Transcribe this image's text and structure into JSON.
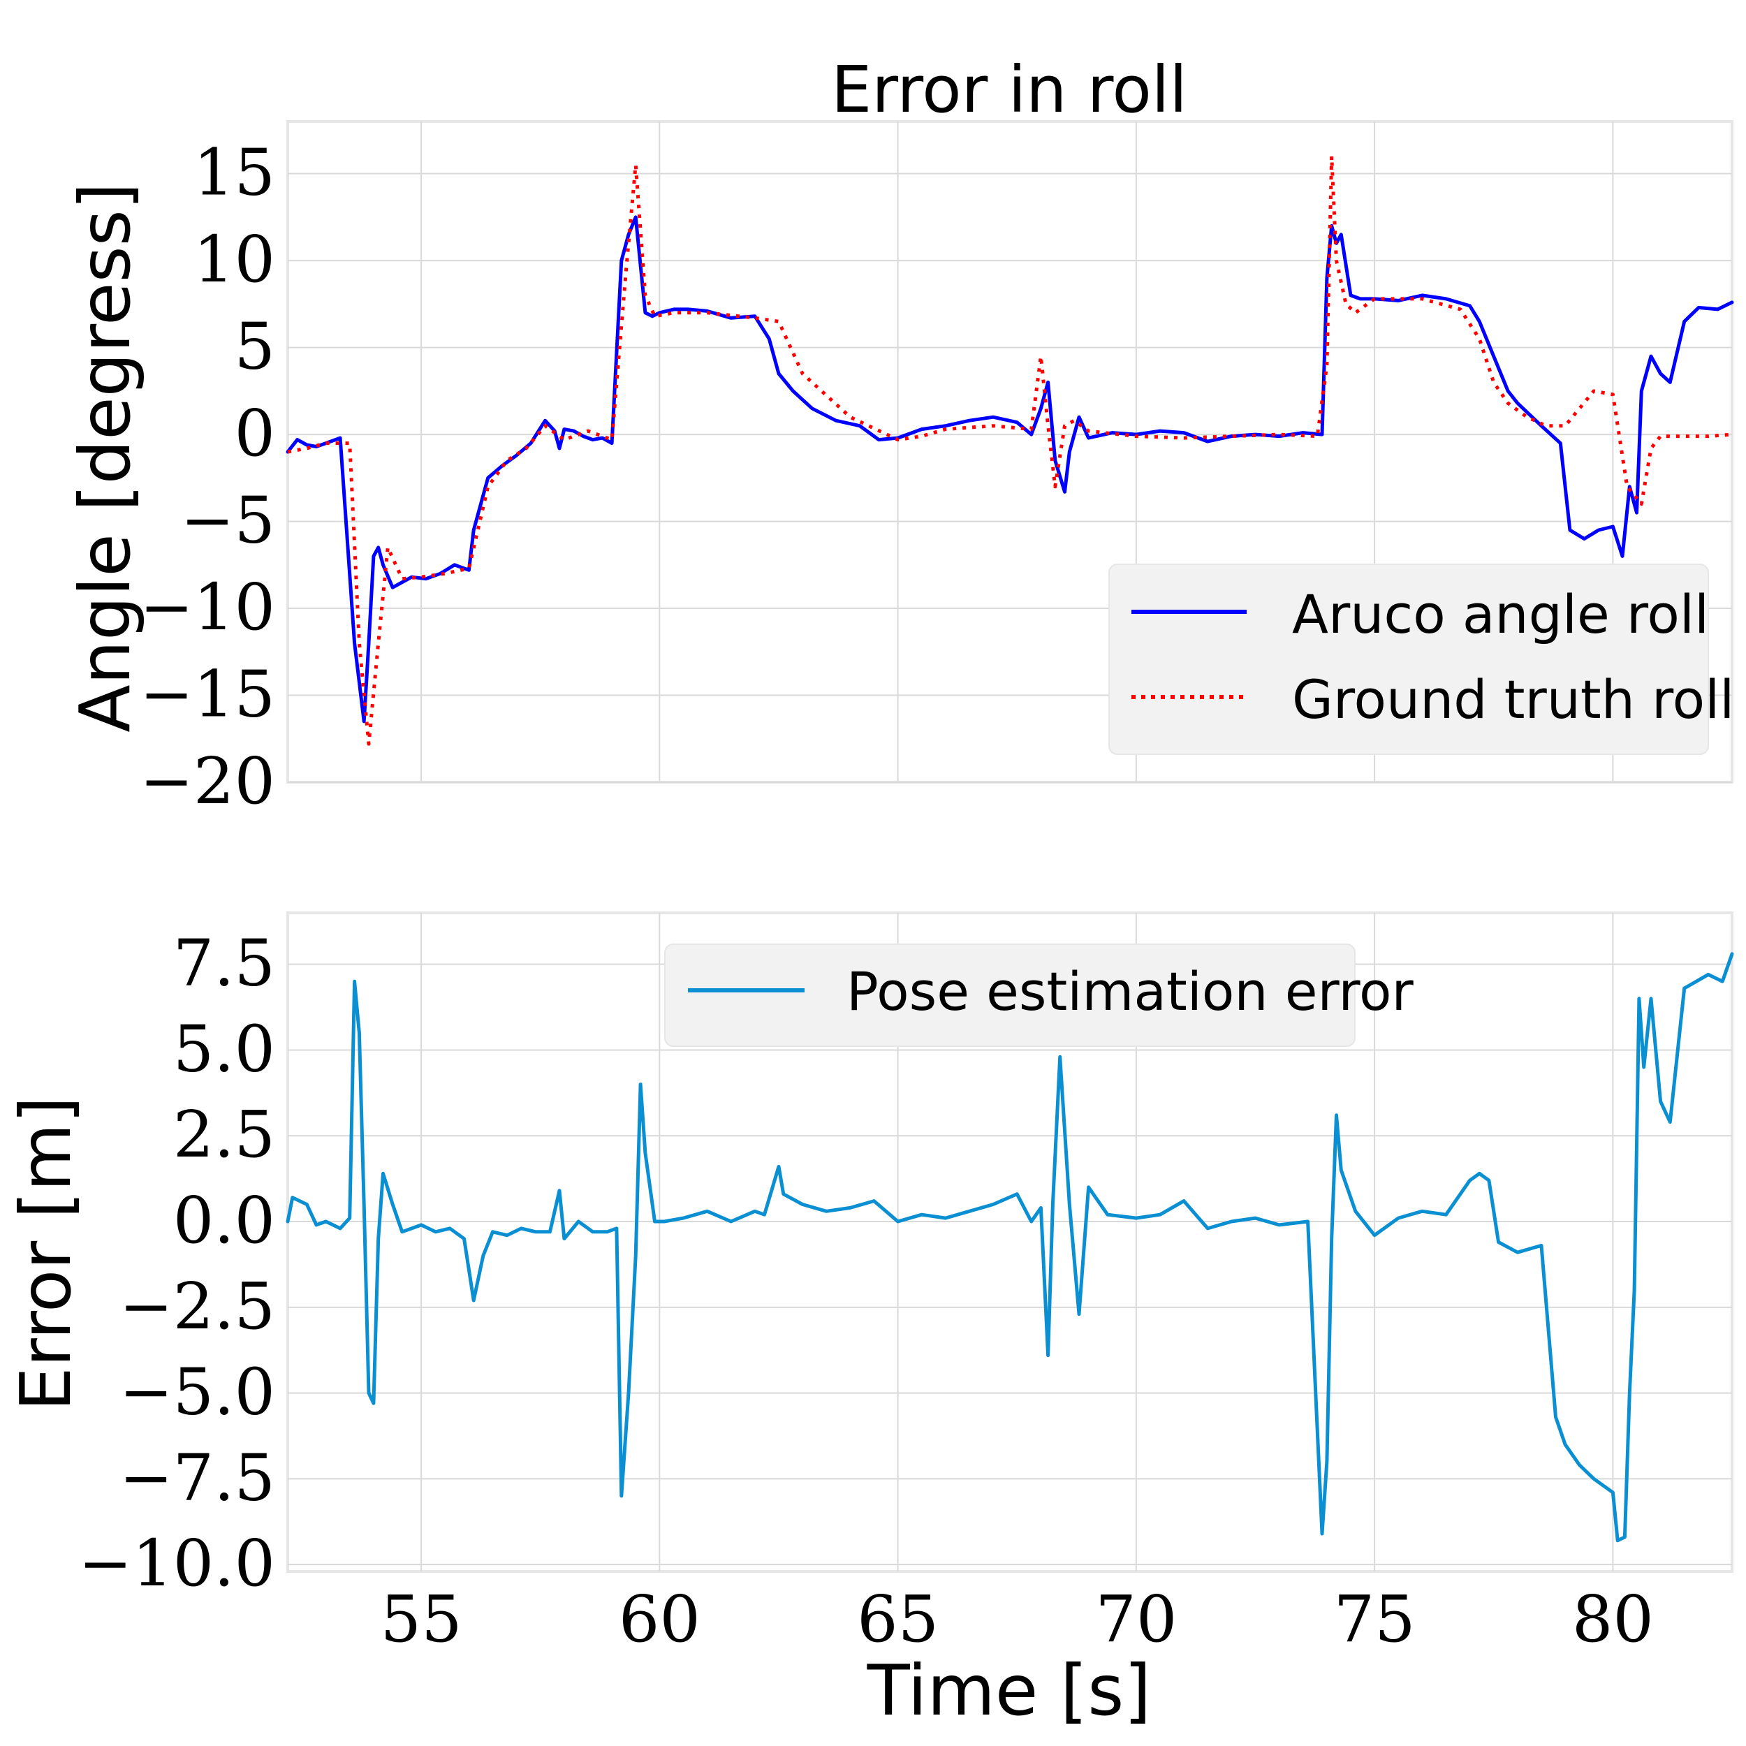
{
  "chart_data": [
    {
      "type": "line",
      "title": "Error in roll",
      "xlabel": "",
      "ylabel": "Angle [degress]",
      "xlim": [
        52.2,
        82.5
      ],
      "ylim": [
        -20,
        18
      ],
      "xticks": [
        55,
        60,
        65,
        70,
        75,
        80
      ],
      "yticks": [
        -20,
        -15,
        -10,
        -5,
        0,
        5,
        10,
        15
      ],
      "ytick_labels": [
        "−20",
        "−15",
        "−10",
        "−5",
        "0",
        "5",
        "10",
        "15"
      ],
      "grid": true,
      "legend_position": "lower-right",
      "series": [
        {
          "name": "Aruco angle roll",
          "style": "solid",
          "color": "#0000ff",
          "x": [
            52.2,
            52.4,
            52.6,
            52.8,
            53.0,
            53.3,
            53.6,
            53.8,
            53.9,
            54.0,
            54.1,
            54.2,
            54.4,
            54.6,
            54.8,
            55.1,
            55.4,
            55.7,
            56.0,
            56.1,
            56.4,
            56.7,
            57.0,
            57.3,
            57.6,
            57.8,
            57.9,
            58.0,
            58.2,
            58.4,
            58.6,
            58.8,
            59.0,
            59.2,
            59.35,
            59.5,
            59.7,
            59.85,
            60.0,
            60.3,
            60.6,
            61.0,
            61.5,
            62.0,
            62.3,
            62.5,
            62.8,
            63.2,
            63.7,
            64.2,
            64.6,
            65.0,
            65.5,
            66.0,
            66.5,
            67.0,
            67.5,
            67.8,
            68.0,
            68.15,
            68.3,
            68.5,
            68.6,
            68.8,
            69.0,
            69.5,
            70.0,
            70.5,
            71.0,
            71.5,
            72.0,
            72.5,
            73.0,
            73.5,
            73.9,
            74.0,
            74.1,
            74.2,
            74.3,
            74.5,
            74.7,
            75.0,
            75.5,
            76.0,
            76.5,
            77.0,
            77.2,
            77.5,
            77.8,
            78.0,
            78.5,
            78.9,
            79.1,
            79.4,
            79.7,
            80.0,
            80.2,
            80.35,
            80.5,
            80.6,
            80.8,
            81.0,
            81.2,
            81.5,
            81.8,
            82.2,
            82.5
          ],
          "y": [
            -1.0,
            -0.3,
            -0.6,
            -0.7,
            -0.5,
            -0.2,
            -12.0,
            -16.5,
            -12.0,
            -7.0,
            -6.5,
            -7.5,
            -8.8,
            -8.5,
            -8.2,
            -8.3,
            -8.0,
            -7.5,
            -7.8,
            -5.5,
            -2.5,
            -1.8,
            -1.2,
            -0.5,
            0.8,
            0.2,
            -0.8,
            0.3,
            0.2,
            -0.1,
            -0.3,
            -0.2,
            -0.5,
            10.0,
            11.5,
            12.5,
            7.0,
            6.8,
            7.0,
            7.2,
            7.2,
            7.1,
            6.7,
            6.8,
            5.5,
            3.5,
            2.5,
            1.5,
            0.8,
            0.5,
            -0.3,
            -0.2,
            0.3,
            0.5,
            0.8,
            1.0,
            0.7,
            0.0,
            1.5,
            3.0,
            -1.5,
            -3.3,
            -1.0,
            1.0,
            -0.2,
            0.1,
            0.0,
            0.2,
            0.1,
            -0.4,
            -0.1,
            0.0,
            -0.1,
            0.1,
            0.0,
            9.0,
            12.0,
            11.0,
            11.5,
            8.0,
            7.8,
            7.8,
            7.7,
            8.0,
            7.8,
            7.4,
            6.5,
            4.5,
            2.5,
            1.8,
            0.5,
            -0.5,
            -5.5,
            -6.0,
            -5.5,
            -5.3,
            -7.0,
            -3.0,
            -4.5,
            2.5,
            4.5,
            3.5,
            3.0,
            6.5,
            7.3,
            7.2,
            7.6
          ],
          "note": "approximate digitized trace"
        },
        {
          "name": "Ground truth roll",
          "style": "dotted",
          "color": "#ff0000",
          "x": [
            52.2,
            52.6,
            53.0,
            53.5,
            53.7,
            53.9,
            54.1,
            54.3,
            54.6,
            55.0,
            55.5,
            56.0,
            56.4,
            56.8,
            57.2,
            57.6,
            58.0,
            58.5,
            59.0,
            59.3,
            59.5,
            59.7,
            59.9,
            60.3,
            61.0,
            62.0,
            62.5,
            63.0,
            64.0,
            65.0,
            65.5,
            66.0,
            67.0,
            67.8,
            68.0,
            68.15,
            68.3,
            68.5,
            68.7,
            69.0,
            70.0,
            71.0,
            72.0,
            73.0,
            73.8,
            74.0,
            74.1,
            74.2,
            74.4,
            74.6,
            75.0,
            76.0,
            76.8,
            77.2,
            77.5,
            77.8,
            78.2,
            78.6,
            79.0,
            79.3,
            79.6,
            80.0,
            80.3,
            80.6,
            80.8,
            81.0,
            81.5,
            82.0,
            82.5
          ],
          "y": [
            -1.0,
            -0.8,
            -0.5,
            -0.5,
            -12.0,
            -17.8,
            -12.0,
            -6.5,
            -8.3,
            -8.2,
            -8.0,
            -7.7,
            -3.0,
            -1.5,
            -0.8,
            0.5,
            -0.3,
            0.2,
            -0.3,
            9.5,
            15.5,
            8.0,
            6.8,
            7.0,
            7.0,
            6.7,
            6.5,
            3.5,
            1.0,
            -0.3,
            -0.1,
            0.3,
            0.5,
            0.3,
            4.5,
            0.5,
            -3.0,
            0.5,
            0.8,
            0.2,
            -0.1,
            -0.2,
            -0.1,
            0.0,
            -0.1,
            4.0,
            16.0,
            10.0,
            7.5,
            7.0,
            7.8,
            7.8,
            7.2,
            5.5,
            3.0,
            1.8,
            1.0,
            0.5,
            0.5,
            1.5,
            2.5,
            2.3,
            -3.0,
            -4.0,
            -0.8,
            -0.1,
            -0.1,
            -0.1,
            0.0
          ],
          "note": "approximate digitized trace"
        }
      ]
    },
    {
      "type": "line",
      "title": "",
      "xlabel": "Time [s]",
      "ylabel": "Error [m]",
      "xlim": [
        52.2,
        82.5
      ],
      "ylim": [
        -10.2,
        9.0
      ],
      "xticks": [
        55,
        60,
        65,
        70,
        75,
        80
      ],
      "xtick_labels": [
        "55",
        "60",
        "65",
        "70",
        "75",
        "80"
      ],
      "yticks": [
        -10.0,
        -7.5,
        -5.0,
        -2.5,
        0.0,
        2.5,
        5.0,
        7.5
      ],
      "ytick_labels": [
        "−10.0",
        "−7.5",
        "−5.0",
        "−2.5",
        "0.0",
        "2.5",
        "5.0",
        "7.5"
      ],
      "grid": true,
      "legend_position": "upper-center",
      "series": [
        {
          "name": "Pose estimation error",
          "style": "solid",
          "color": "#0a8fd2",
          "x": [
            52.2,
            52.3,
            52.6,
            52.8,
            53.0,
            53.3,
            53.5,
            53.6,
            53.7,
            53.8,
            53.9,
            54.0,
            54.1,
            54.2,
            54.4,
            54.6,
            54.8,
            55.0,
            55.3,
            55.6,
            55.9,
            56.1,
            56.3,
            56.5,
            56.8,
            57.1,
            57.4,
            57.7,
            57.9,
            58.0,
            58.3,
            58.6,
            58.9,
            59.1,
            59.2,
            59.35,
            59.5,
            59.6,
            59.7,
            59.9,
            60.1,
            60.5,
            61.0,
            61.5,
            62.0,
            62.2,
            62.5,
            62.6,
            63.0,
            63.5,
            64.0,
            64.5,
            65.0,
            65.5,
            66.0,
            66.5,
            67.0,
            67.5,
            67.8,
            68.0,
            68.15,
            68.25,
            68.4,
            68.6,
            68.8,
            69.0,
            69.4,
            70.0,
            70.5,
            71.0,
            71.5,
            72.0,
            72.5,
            73.0,
            73.6,
            73.9,
            74.0,
            74.1,
            74.2,
            74.3,
            74.6,
            75.0,
            75.5,
            76.0,
            76.5,
            77.0,
            77.2,
            77.4,
            77.6,
            78.0,
            78.5,
            78.8,
            79.0,
            79.3,
            79.6,
            80.0,
            80.1,
            80.25,
            80.35,
            80.45,
            80.55,
            80.65,
            80.8,
            81.0,
            81.2,
            81.5,
            82.0,
            82.3,
            82.5
          ],
          "y": [
            0.0,
            0.7,
            0.5,
            -0.1,
            0.0,
            -0.2,
            0.1,
            7.0,
            5.5,
            0.5,
            -5.0,
            -5.3,
            -0.5,
            1.4,
            0.5,
            -0.3,
            -0.2,
            -0.1,
            -0.3,
            -0.2,
            -0.5,
            -2.3,
            -1.0,
            -0.3,
            -0.4,
            -0.2,
            -0.3,
            -0.3,
            0.9,
            -0.5,
            0.0,
            -0.3,
            -0.3,
            -0.2,
            -8.0,
            -5.0,
            -1.0,
            4.0,
            2.0,
            0.0,
            0.0,
            0.1,
            0.3,
            0.0,
            0.3,
            0.2,
            1.6,
            0.8,
            0.5,
            0.3,
            0.4,
            0.6,
            0.0,
            0.2,
            0.1,
            0.3,
            0.5,
            0.8,
            0.0,
            0.4,
            -3.9,
            0.5,
            4.8,
            0.5,
            -2.7,
            1.0,
            0.2,
            0.1,
            0.2,
            0.6,
            -0.2,
            0.0,
            0.1,
            -0.1,
            0.0,
            -9.1,
            -7.0,
            -0.5,
            3.1,
            1.5,
            0.3,
            -0.4,
            0.1,
            0.3,
            0.2,
            1.2,
            1.4,
            1.2,
            -0.6,
            -0.9,
            -0.7,
            -5.7,
            -6.5,
            -7.1,
            -7.5,
            -7.9,
            -9.3,
            -9.2,
            -5.0,
            -2.0,
            6.5,
            4.5,
            6.5,
            3.5,
            2.9,
            6.8,
            7.2,
            7.0,
            7.8
          ],
          "note": "approximate digitized trace"
        }
      ]
    }
  ]
}
